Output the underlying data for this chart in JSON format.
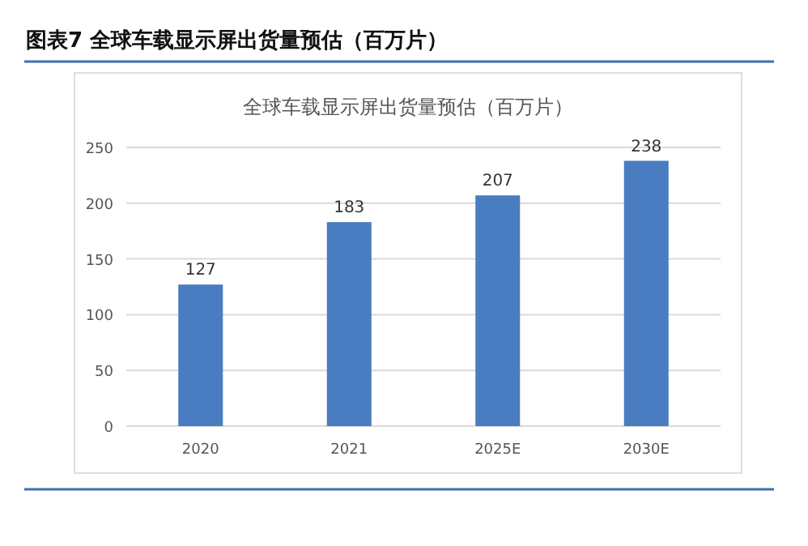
{
  "chart_data": {
    "type": "bar",
    "title": "图表7  全球车载显示屏出货量预估（百万片）",
    "subtitle": "全球车载显示屏出货量预估（百万片）",
    "categories": [
      "2020",
      "2021",
      "2025E",
      "2030E"
    ],
    "values": [
      127,
      183,
      207,
      238
    ],
    "color": "#4a7cc1",
    "ylim": [
      0,
      250
    ],
    "yticks": [
      0,
      50,
      100,
      150,
      200,
      250
    ],
    "grid": "y",
    "data_labels": true
  }
}
